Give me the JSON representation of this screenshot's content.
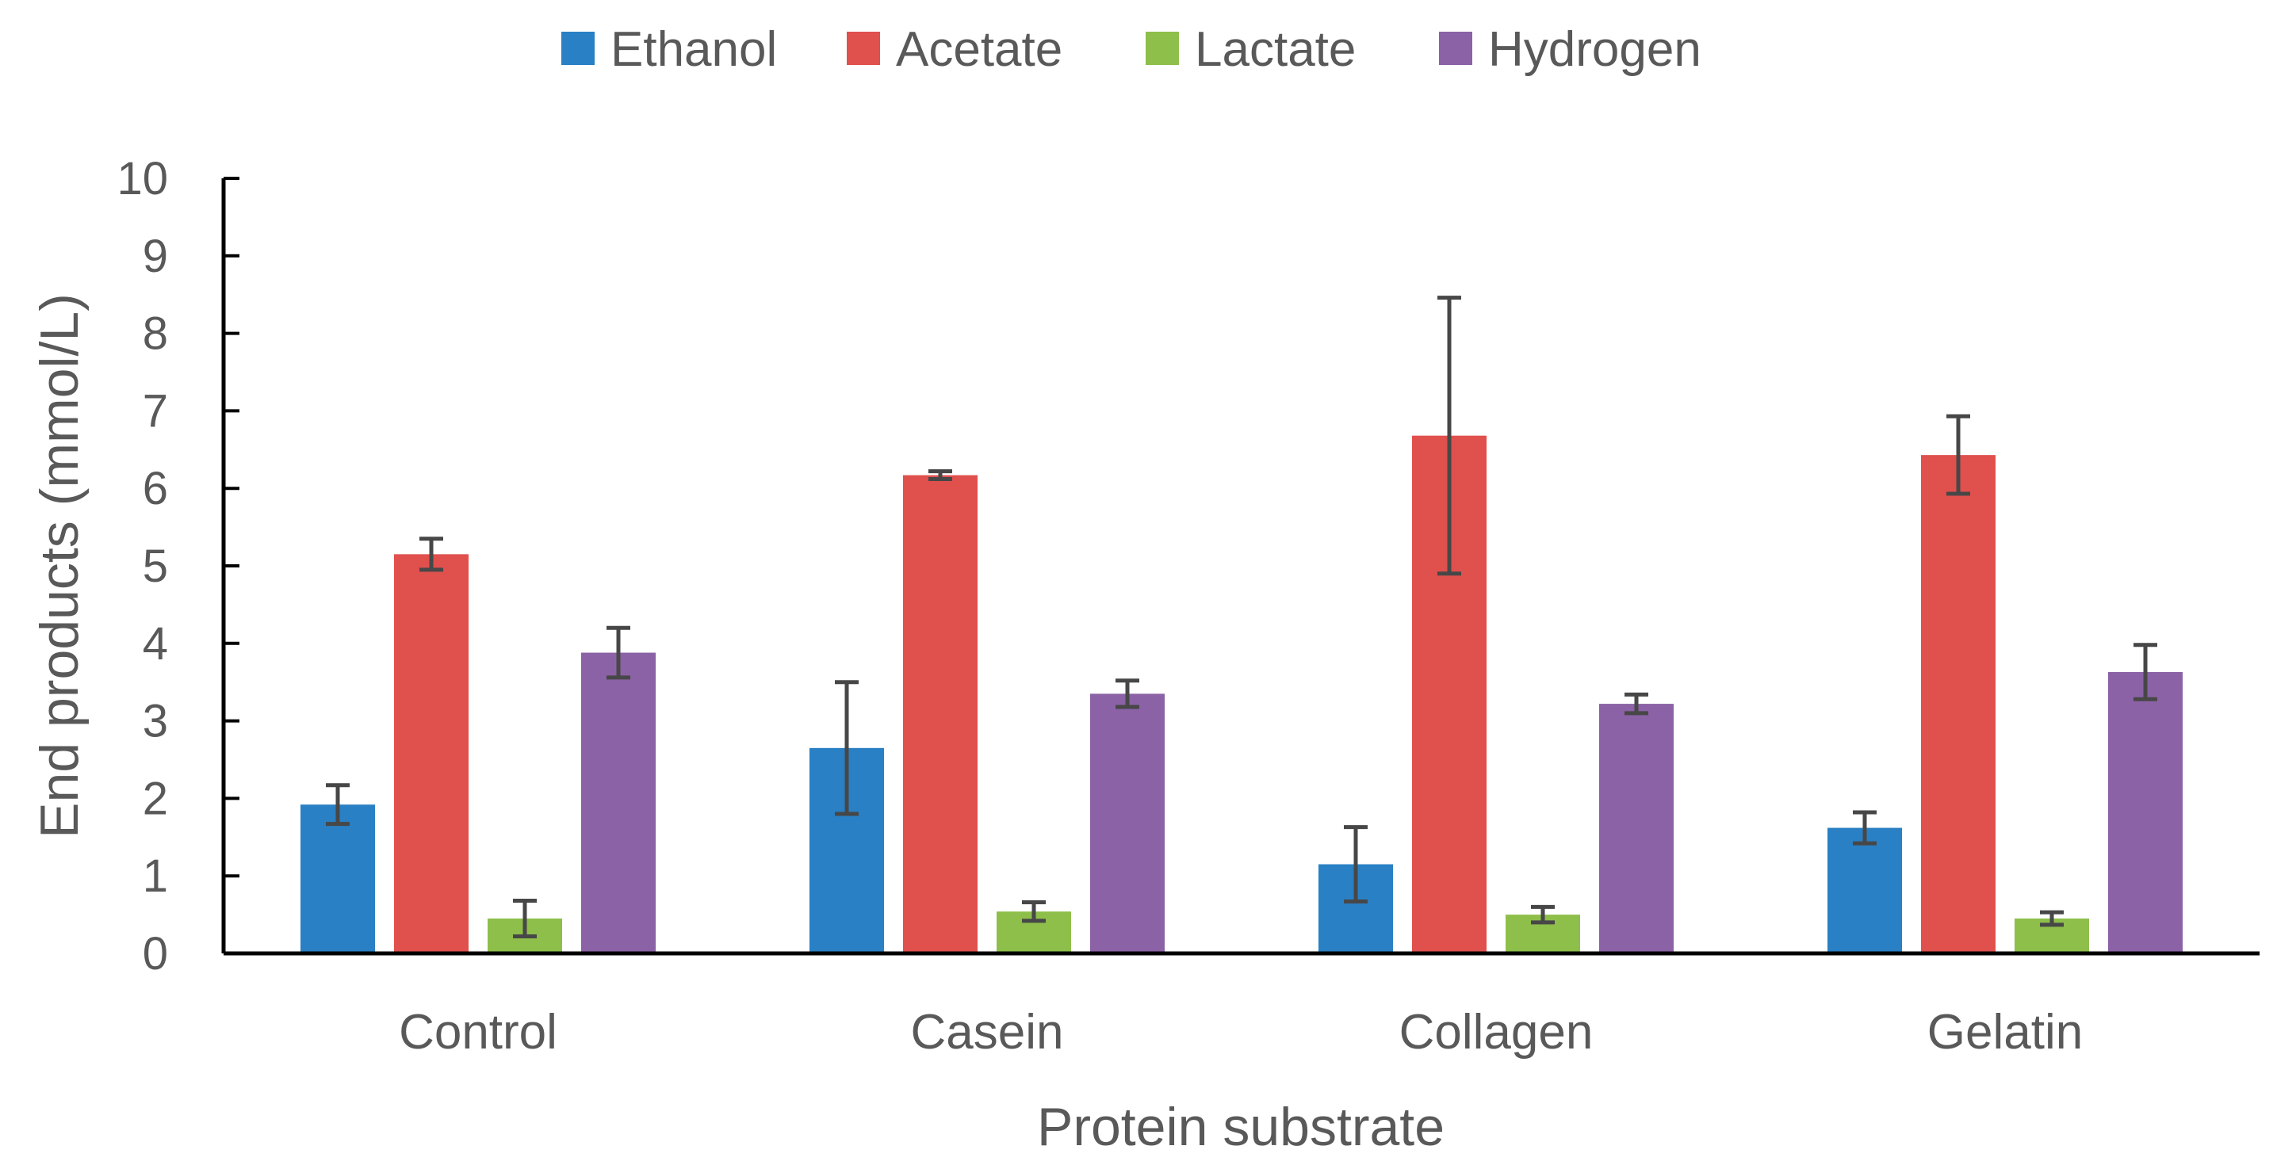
{
  "chart_data": {
    "type": "bar",
    "title": "",
    "xlabel": "Protein substrate",
    "ylabel": "End products (mmol/L)",
    "ylim": [
      0,
      10
    ],
    "yticks": [
      0,
      1,
      2,
      3,
      4,
      5,
      6,
      7,
      8,
      9,
      10
    ],
    "categories": [
      "Control",
      "Casein",
      "Collagen",
      "Gelatin"
    ],
    "legend_position": "top",
    "grid": false,
    "series": [
      {
        "name": "Ethanol",
        "color": "#2980c4",
        "values": [
          1.92,
          2.65,
          1.15,
          1.62
        ],
        "errors": [
          0.25,
          0.85,
          0.48,
          0.2
        ]
      },
      {
        "name": "Acetate",
        "color": "#e0504d",
        "values": [
          5.15,
          6.17,
          6.68,
          6.43
        ],
        "errors": [
          0.2,
          0.05,
          1.78,
          0.5
        ]
      },
      {
        "name": "Lactate",
        "color": "#8dbf4a",
        "values": [
          0.45,
          0.54,
          0.5,
          0.45
        ],
        "errors": [
          0.23,
          0.12,
          0.1,
          0.08
        ]
      },
      {
        "name": "Hydrogen",
        "color": "#8b62a6",
        "values": [
          3.88,
          3.35,
          3.22,
          3.63
        ],
        "errors": [
          0.32,
          0.17,
          0.12,
          0.35
        ]
      }
    ]
  }
}
